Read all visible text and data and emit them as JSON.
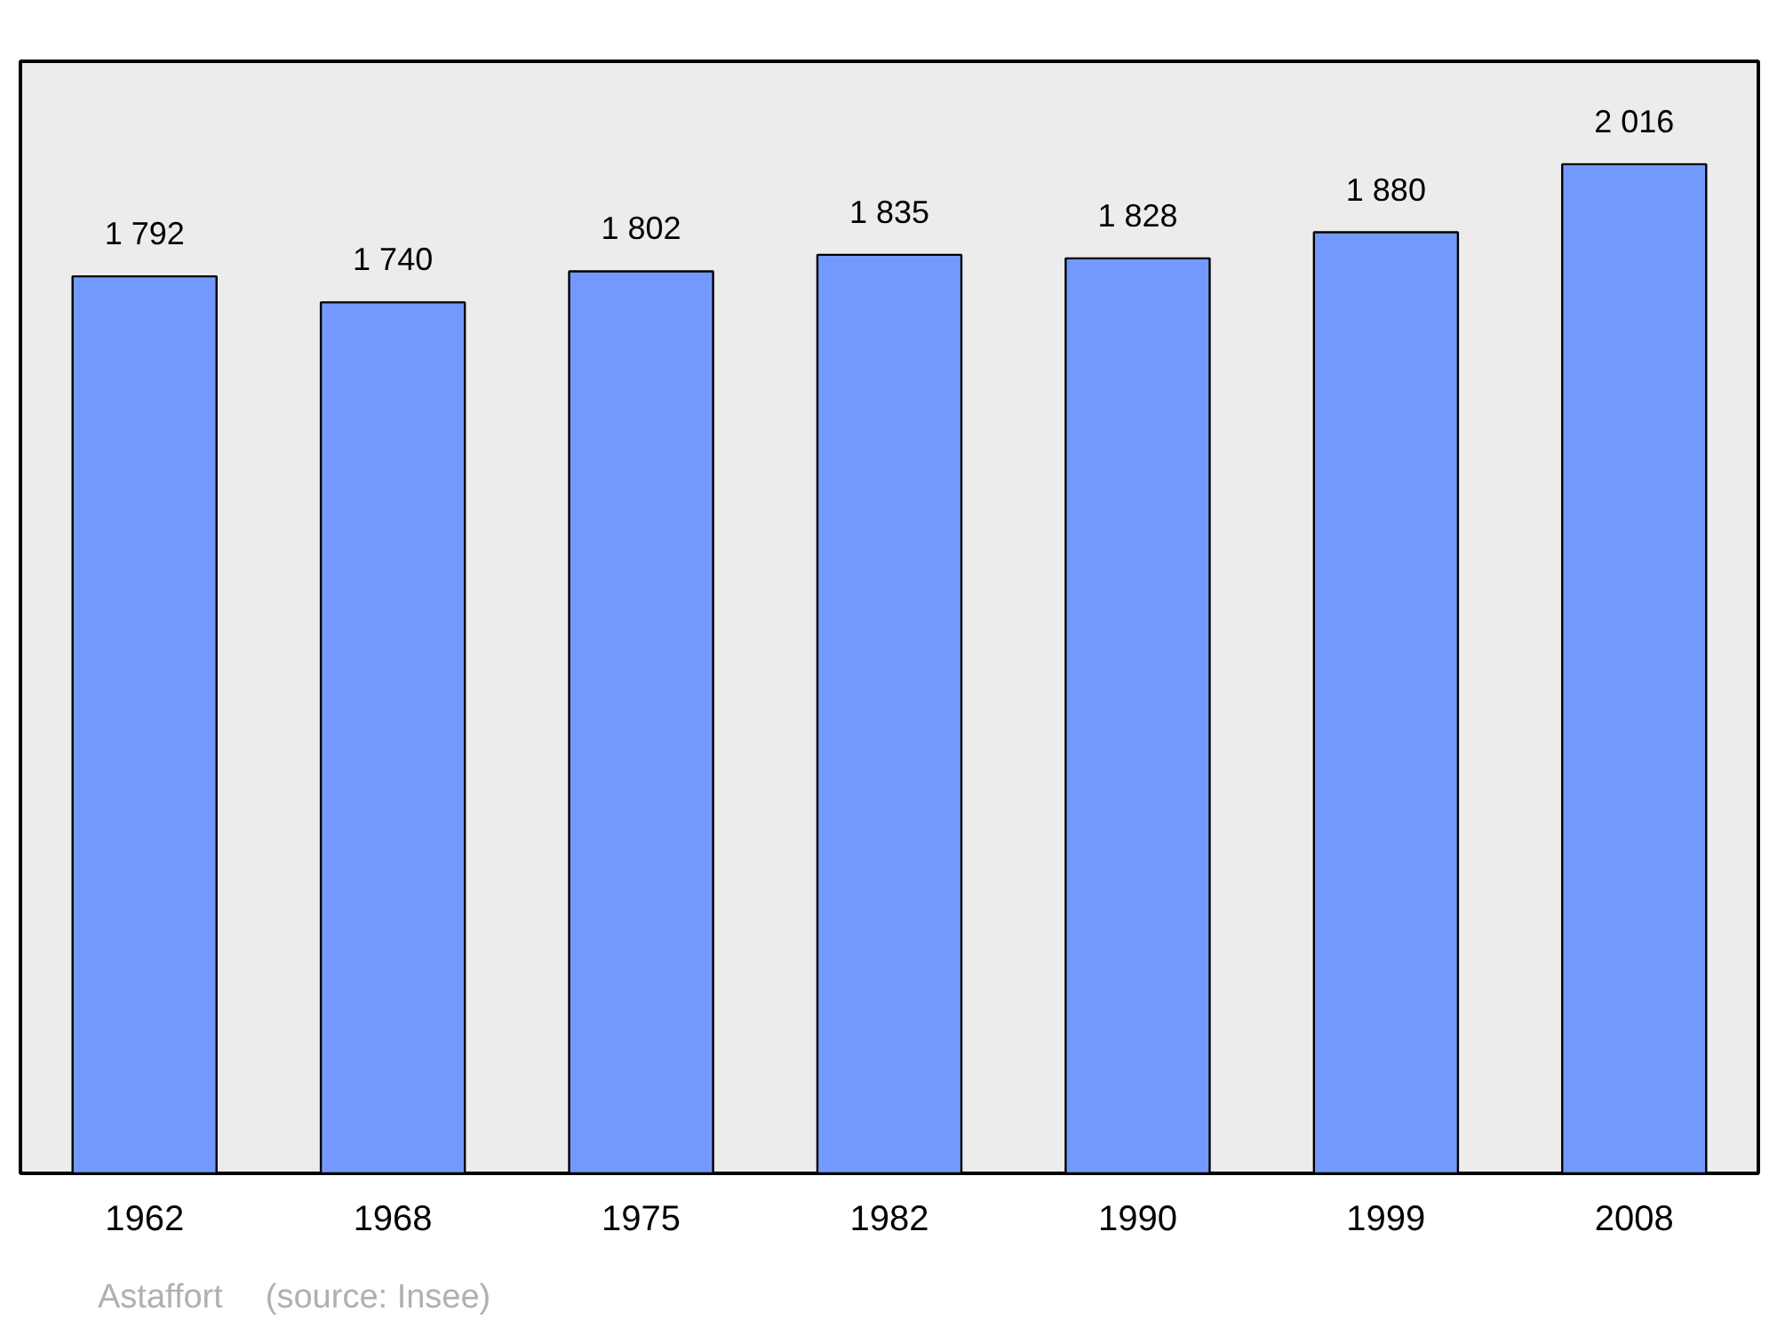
{
  "chart_data": {
    "type": "bar",
    "categories": [
      "1962",
      "1968",
      "1975",
      "1982",
      "1990",
      "1999",
      "2008"
    ],
    "values": [
      1792,
      1740,
      1802,
      1835,
      1828,
      1880,
      2016
    ],
    "value_labels": [
      "1 792",
      "1 740",
      "1 802",
      "1 835",
      "1 828",
      "1 880",
      "2 016"
    ],
    "color": "#7399ff",
    "grid": false,
    "tick_labels": "x",
    "annotations": [
      "Astaffort",
      "(source: Insee)"
    ]
  }
}
